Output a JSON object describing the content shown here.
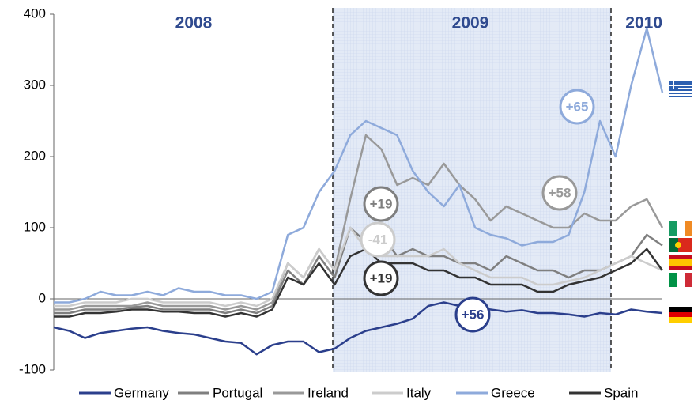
{
  "chart_data": {
    "type": "line",
    "categories": [
      null,
      null,
      null,
      null,
      null,
      null,
      null,
      null,
      null,
      null,
      null,
      null,
      null,
      null,
      null,
      null,
      null,
      null,
      null,
      null,
      null,
      null,
      null,
      null,
      null,
      null,
      null,
      null,
      null,
      null,
      null,
      null,
      null,
      null,
      null,
      null,
      null,
      null,
      null,
      null
    ],
    "series": [
      {
        "name": "Germany",
        "color": "#2b3f8c",
        "values": [
          -40,
          -45,
          -55,
          -48,
          -45,
          -42,
          -40,
          -45,
          -48,
          -50,
          -55,
          -60,
          -62,
          -78,
          -65,
          -60,
          -60,
          -75,
          -70,
          -55,
          -45,
          -40,
          -35,
          -28,
          -10,
          -5,
          -10,
          -12,
          -15,
          -18,
          -16,
          -20,
          -20,
          -22,
          -25,
          -20,
          -22,
          -15,
          -18,
          -20
        ]
      },
      {
        "name": "Portugal",
        "color": "#7f7f7f",
        "values": [
          -20,
          -20,
          -15,
          -15,
          -15,
          -12,
          -10,
          -15,
          -15,
          -15,
          -15,
          -20,
          -15,
          -20,
          -10,
          40,
          20,
          60,
          30,
          100,
          80,
          90,
          60,
          70,
          60,
          60,
          50,
          50,
          40,
          60,
          50,
          40,
          40,
          30,
          40,
          40,
          50,
          60,
          90,
          75
        ]
      },
      {
        "name": "Ireland",
        "color": "#999999",
        "values": [
          -15,
          -15,
          -10,
          -10,
          -10,
          -10,
          -5,
          -10,
          -10,
          -10,
          -10,
          -15,
          -10,
          -15,
          -5,
          50,
          30,
          70,
          40,
          140,
          230,
          210,
          160,
          170,
          160,
          190,
          160,
          140,
          110,
          130,
          120,
          110,
          100,
          100,
          120,
          110,
          110,
          130,
          140,
          100
        ]
      },
      {
        "name": "Italy",
        "color": "#cccccc",
        "values": [
          -10,
          -10,
          -5,
          -5,
          -5,
          0,
          0,
          -5,
          -5,
          -5,
          -5,
          -10,
          -5,
          -10,
          0,
          50,
          30,
          70,
          40,
          100,
          70,
          60,
          60,
          60,
          60,
          70,
          50,
          40,
          30,
          30,
          30,
          20,
          20,
          25,
          30,
          40,
          50,
          60,
          50,
          40
        ]
      },
      {
        "name": "Greece",
        "color": "#8eaadb",
        "values": [
          -5,
          -5,
          0,
          10,
          5,
          5,
          10,
          5,
          15,
          10,
          10,
          5,
          5,
          0,
          10,
          90,
          100,
          150,
          180,
          230,
          250,
          240,
          230,
          180,
          150,
          130,
          160,
          100,
          90,
          85,
          75,
          80,
          80,
          90,
          150,
          250,
          200,
          300,
          380,
          290
        ]
      },
      {
        "name": "Spain",
        "color": "#333333",
        "values": [
          -25,
          -25,
          -20,
          -20,
          -18,
          -15,
          -15,
          -18,
          -18,
          -20,
          -20,
          -25,
          -20,
          -25,
          -15,
          30,
          20,
          50,
          20,
          60,
          70,
          50,
          50,
          50,
          40,
          40,
          30,
          30,
          20,
          20,
          20,
          10,
          10,
          20,
          25,
          30,
          40,
          50,
          70,
          40
        ]
      }
    ],
    "ylim": [
      -100,
      400
    ],
    "yticks": [
      -100,
      0,
      100,
      200,
      300,
      400
    ],
    "grid": false,
    "periods": [
      "2008",
      "2009",
      "2010"
    ],
    "annotations": [
      {
        "text": "+65",
        "color": "#8eaadb"
      },
      {
        "text": "+58",
        "color": "#999999"
      },
      {
        "text": "+19",
        "color": "#7f7f7f"
      },
      {
        "text": "-41",
        "color": "#cccccc"
      },
      {
        "text": "+19",
        "color": "#333333"
      },
      {
        "text": "+56",
        "color": "#2b3f8c"
      }
    ]
  }
}
